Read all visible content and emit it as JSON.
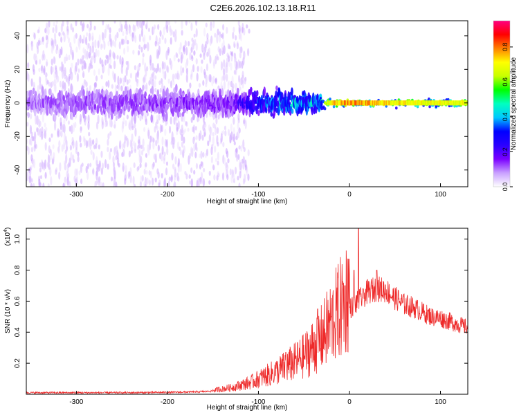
{
  "title": "C2E6.2026.102.13.18.R11",
  "chart_data": [
    {
      "type": "heatmap",
      "xlabel": "Height of straight line (km)",
      "ylabel": "Frequency (Hz)",
      "xlim": [
        -355,
        130
      ],
      "ylim": [
        -50,
        49
      ],
      "xticks": [
        -300,
        -200,
        -100,
        0,
        100
      ],
      "xtick_labels": [
        "-300",
        "-200",
        "-100",
        "0",
        "100"
      ],
      "yticks": [
        -40,
        -20,
        0,
        20,
        40
      ],
      "ytick_labels": [
        "-40",
        "-20",
        "0",
        "20",
        "40"
      ],
      "colorbar": {
        "label": "Normalized spectral amplitude",
        "range": [
          0,
          0.95
        ],
        "ticks": [
          0.0,
          0.2,
          0.4,
          0.6,
          0.8
        ],
        "tick_labels": [
          "0.0",
          "0.2",
          "0.4",
          "0.6",
          "0.8"
        ],
        "colormap": [
          "#ffffff",
          "#c9a0ff",
          "#7a00ff",
          "#2a00ff",
          "#0000ff",
          "#00c8ff",
          "#00ffc0",
          "#00ff00",
          "#c8ff00",
          "#ffff00",
          "#ff8000",
          "#ff0000",
          "#ff0080"
        ]
      },
      "band_profile": [
        {
          "x": -355,
          "half_width": 10,
          "amp": 0.12
        },
        {
          "x": -300,
          "half_width": 11,
          "amp": 0.14
        },
        {
          "x": -200,
          "half_width": 11,
          "amp": 0.15
        },
        {
          "x": -130,
          "half_width": 10,
          "amp": 0.17
        },
        {
          "x": -100,
          "half_width": 9,
          "amp": 0.35
        },
        {
          "x": -60,
          "half_width": 10,
          "amp": 0.45
        },
        {
          "x": -30,
          "half_width": 6,
          "amp": 0.5
        },
        {
          "x": -20,
          "half_width": 3,
          "amp": 0.75
        },
        {
          "x": 0,
          "half_width": 3,
          "amp": 0.8
        },
        {
          "x": 60,
          "half_width": 3,
          "amp": 0.72
        },
        {
          "x": 130,
          "half_width": 3,
          "amp": 0.7
        }
      ],
      "background_scatter_extent": {
        "x_to": -110,
        "freq_range": [
          -50,
          49
        ]
      }
    },
    {
      "type": "line",
      "xlabel": "Height of straight line (km)",
      "ylabel": "SNR (10 * v/v)",
      "y_multiplier_label": "(x10",
      "y_multiplier_exp": "4",
      "xlim": [
        -355,
        130
      ],
      "ylim": [
        0,
        1.07
      ],
      "xticks": [
        -300,
        -200,
        -100,
        0,
        100
      ],
      "xtick_labels": [
        "-300",
        "-200",
        "-100",
        "0",
        "100"
      ],
      "yticks": [
        0.2,
        0.4,
        0.6,
        0.8,
        1.0
      ],
      "ytick_labels": [
        "0.2",
        "0.4",
        "0.6",
        "0.8",
        "1.0"
      ],
      "color": "#ee2a2a",
      "series": [
        {
          "name": "SNR",
          "x": [
            -355,
            -300,
            -250,
            -200,
            -170,
            -150,
            -130,
            -110,
            -100,
            -80,
            -60,
            -50,
            -40,
            -30,
            -20,
            -10,
            0,
            10,
            20,
            30,
            40,
            50,
            60,
            70,
            80,
            90,
            100,
            110,
            120,
            130
          ],
          "values": [
            0.01,
            0.01,
            0.01,
            0.012,
            0.015,
            0.02,
            0.035,
            0.06,
            0.08,
            0.12,
            0.17,
            0.2,
            0.25,
            0.3,
            0.38,
            0.45,
            0.55,
            0.6,
            0.66,
            0.68,
            0.67,
            0.62,
            0.58,
            0.56,
            0.53,
            0.5,
            0.49,
            0.47,
            0.45,
            0.43
          ]
        }
      ],
      "spikes": [
        {
          "x": -70,
          "value": 0.27
        },
        {
          "x": -35,
          "value": 0.55
        },
        {
          "x": -20,
          "value": 0.5
        },
        {
          "x": -5,
          "value": 0.7
        },
        {
          "x": 5,
          "value": 0.8
        },
        {
          "x": 10,
          "value": 1.07
        },
        {
          "x": 15,
          "value": 0.68
        },
        {
          "x": 30,
          "value": 0.8
        }
      ]
    }
  ]
}
